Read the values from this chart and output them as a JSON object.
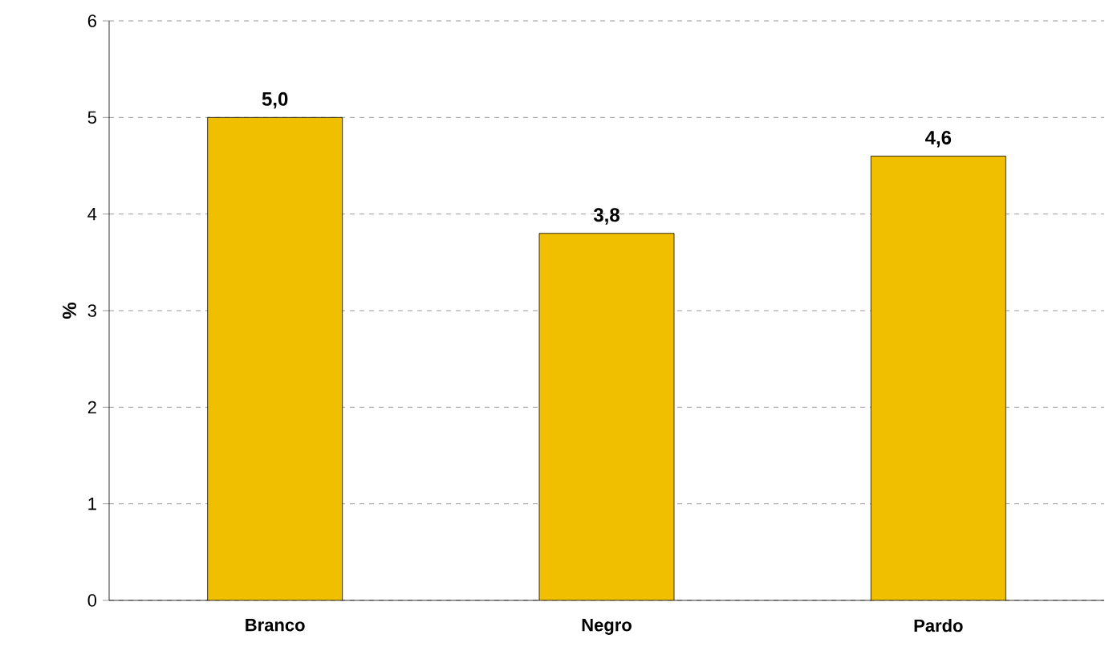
{
  "chart_data": {
    "type": "bar",
    "ylabel": "%",
    "categories": [
      "Branco",
      "Negro",
      "Pardo"
    ],
    "values": [
      5.0,
      3.8,
      4.6
    ],
    "value_labels": [
      "5,0",
      "3,8",
      "4,6"
    ],
    "color": "#f0c000",
    "ylim": [
      0,
      6
    ],
    "yticks": [
      0,
      1,
      2,
      3,
      4,
      5,
      6
    ],
    "grid": "y"
  }
}
